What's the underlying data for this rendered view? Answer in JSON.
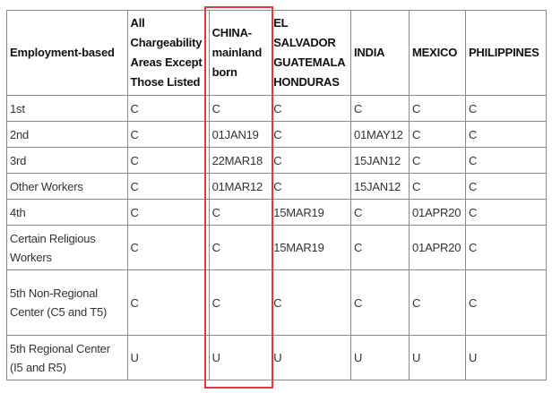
{
  "table": {
    "headers": [
      "Employment-based",
      "All Chargeability Areas Except Those Listed",
      "CHINA-mainland born",
      "EL SALVADOR GUATEMALA HONDURAS",
      "INDIA",
      "MEXICO",
      "PHILIPPINES"
    ],
    "rows": [
      [
        "1st",
        "C",
        "C",
        "C",
        "C",
        "C",
        "C"
      ],
      [
        "2nd",
        "C",
        "01JAN19",
        "C",
        "01MAY12",
        "C",
        "C"
      ],
      [
        "3rd",
        "C",
        "22MAR18",
        "C",
        "15JAN12",
        "C",
        "C"
      ],
      [
        "Other Workers",
        "C",
        "01MAR12",
        "C",
        "15JAN12",
        "C",
        "C"
      ],
      [
        "4th",
        "C",
        "C",
        "15MAR19",
        "C",
        "01APR20",
        "C"
      ],
      [
        "Certain Religious Workers",
        "C",
        "C",
        "15MAR19",
        "C",
        "01APR20",
        "C"
      ],
      [
        "5th Non-Regional Center (C5 and T5)",
        "C",
        "C",
        "C",
        "C",
        "C",
        "C"
      ],
      [
        "5th Regional Center (I5 and R5)",
        "U",
        "U",
        "U",
        "U",
        "U",
        "U"
      ]
    ]
  },
  "highlight": {
    "column": "CHINA-mainland born",
    "color": "#e03a3a"
  }
}
